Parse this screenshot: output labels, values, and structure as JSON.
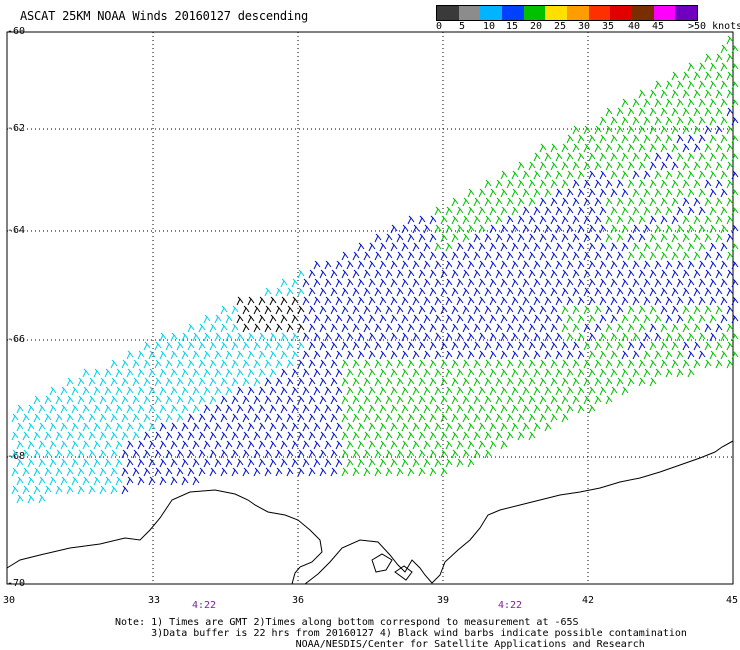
{
  "title": "ASCAT 25KM NOAA Winds 20160127 descending",
  "scale": {
    "labels": [
      "0",
      "5",
      "10",
      "15",
      "20",
      "25",
      "30",
      "35",
      "40",
      "45",
      ">50 knots"
    ],
    "colors": [
      "#3a3a3a",
      "#8c8c8c",
      "#00b4ff",
      "#0040ff",
      "#00c000",
      "#ffe000",
      "#ff9c00",
      "#ff3000",
      "#e00000",
      "#7a2e00",
      "#ff00ff",
      "#7000c0"
    ]
  },
  "lat_labels": [
    "-60",
    "-62",
    "-64",
    "-66",
    "-68",
    "-70"
  ],
  "lon_labels": [
    "30",
    "33",
    "36",
    "39",
    "42",
    "45"
  ],
  "times": [
    "4:22",
    "4:22"
  ],
  "notes": [
    "Note: 1) Times are GMT 2)Times along bottom correspond to measurement at -65S",
    "      3)Data buffer is 22 hrs from 20160127 4) Black wind barbs indicate possible contamination",
    "                              NOAA/NESDIS/Center for Satellite Applications and Research"
  ],
  "colors": {
    "light_wind": "#00d0e8",
    "moderate_wind": "#0010c8",
    "strong_wind": "#00c000",
    "contaminated": "#000000",
    "time_text": "#7b1fa2"
  }
}
